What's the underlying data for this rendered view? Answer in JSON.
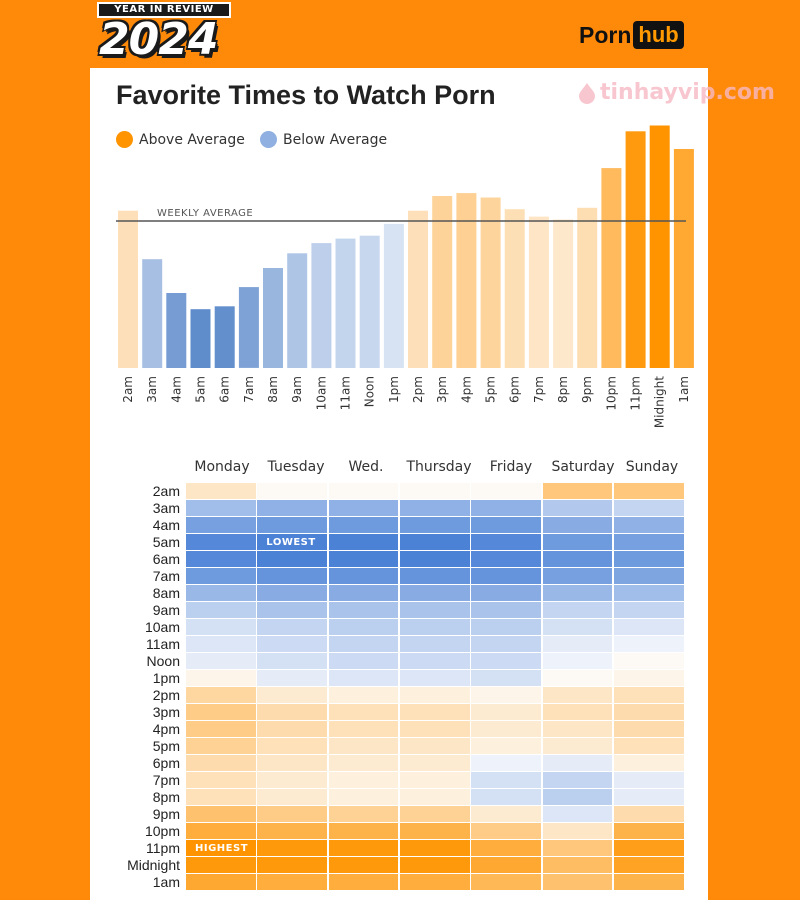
{
  "header": {
    "badge_top": "YEAR IN REVIEW",
    "badge_year": "2024",
    "brand_part1": "Porn",
    "brand_part2": "hub",
    "watermark": "tinhayvip.com"
  },
  "colors": {
    "background": "#ff8a0a",
    "above": "#ff9400",
    "below": "#8fb0e0"
  },
  "chart_data": [
    {
      "type": "bar",
      "title": "Favorite Times to Watch Porn",
      "legend": [
        "Above Average",
        "Below Average"
      ],
      "legend_position": "top-left",
      "reference_line": {
        "label": "WEEKLY AVERAGE",
        "value": 100
      },
      "categories": [
        "2am",
        "3am",
        "4am",
        "5am",
        "6am",
        "7am",
        "8am",
        "9am",
        "10am",
        "11am",
        "Noon",
        "1pm",
        "2pm",
        "3pm",
        "4pm",
        "5pm",
        "6pm",
        "7pm",
        "8pm",
        "9pm",
        "10pm",
        "11pm",
        "Midnight",
        "1am"
      ],
      "values": [
        107,
        74,
        51,
        40,
        42,
        55,
        68,
        78,
        85,
        88,
        90,
        98,
        107,
        117,
        119,
        116,
        108,
        103,
        101,
        109,
        136,
        161,
        165,
        149
      ],
      "ylim": [
        0,
        170
      ],
      "grid": false
    },
    {
      "type": "heatmap",
      "columns": [
        "Monday",
        "Tuesday",
        "Wed.",
        "Thursday",
        "Friday",
        "Saturday",
        "Sunday"
      ],
      "rows": [
        "2am",
        "3am",
        "4am",
        "5am",
        "6am",
        "7am",
        "8am",
        "9am",
        "10am",
        "11am",
        "Noon",
        "1pm",
        "2pm",
        "3pm",
        "4pm",
        "5pm",
        "6pm",
        "7pm",
        "8pm",
        "9pm",
        "10pm",
        "11pm",
        "Midnight",
        "1am"
      ],
      "values": [
        [
          0.2,
          0.0,
          0.0,
          0.0,
          0.0,
          0.5,
          0.5
        ],
        [
          -0.5,
          -0.6,
          -0.6,
          -0.6,
          -0.6,
          -0.4,
          -0.3
        ],
        [
          -0.75,
          -0.8,
          -0.8,
          -0.8,
          -0.8,
          -0.65,
          -0.6
        ],
        [
          -0.95,
          -1.0,
          -1.0,
          -1.0,
          -0.95,
          -0.8,
          -0.75
        ],
        [
          -0.95,
          -1.0,
          -1.0,
          -1.0,
          -0.95,
          -0.85,
          -0.8
        ],
        [
          -0.8,
          -0.85,
          -0.85,
          -0.85,
          -0.85,
          -0.75,
          -0.7
        ],
        [
          -0.55,
          -0.65,
          -0.65,
          -0.65,
          -0.65,
          -0.55,
          -0.5
        ],
        [
          -0.35,
          -0.45,
          -0.45,
          -0.45,
          -0.45,
          -0.3,
          -0.3
        ],
        [
          -0.2,
          -0.3,
          -0.35,
          -0.35,
          -0.35,
          -0.2,
          -0.15
        ],
        [
          -0.15,
          -0.25,
          -0.3,
          -0.3,
          -0.3,
          -0.1,
          -0.05
        ],
        [
          -0.1,
          -0.2,
          -0.25,
          -0.25,
          -0.25,
          -0.05,
          0.0
        ],
        [
          0.05,
          -0.1,
          -0.15,
          -0.15,
          -0.2,
          0.0,
          0.05
        ],
        [
          0.35,
          0.15,
          0.1,
          0.1,
          0.05,
          0.2,
          0.25
        ],
        [
          0.45,
          0.3,
          0.25,
          0.25,
          0.15,
          0.25,
          0.3
        ],
        [
          0.45,
          0.3,
          0.25,
          0.25,
          0.15,
          0.2,
          0.3
        ],
        [
          0.4,
          0.25,
          0.2,
          0.2,
          0.1,
          0.15,
          0.25
        ],
        [
          0.3,
          0.2,
          0.15,
          0.15,
          -0.05,
          -0.1,
          0.1
        ],
        [
          0.25,
          0.15,
          0.1,
          0.1,
          -0.2,
          -0.3,
          -0.1
        ],
        [
          0.25,
          0.15,
          0.1,
          0.1,
          -0.2,
          -0.35,
          -0.1
        ],
        [
          0.55,
          0.45,
          0.4,
          0.4,
          0.15,
          -0.15,
          0.3
        ],
        [
          0.75,
          0.7,
          0.7,
          0.7,
          0.45,
          0.2,
          0.7
        ],
        [
          1.0,
          0.95,
          0.95,
          0.95,
          0.75,
          0.5,
          0.9
        ],
        [
          0.95,
          0.95,
          0.95,
          0.95,
          0.8,
          0.6,
          0.85
        ],
        [
          0.8,
          0.75,
          0.75,
          0.75,
          0.65,
          0.55,
          0.7
        ]
      ],
      "annotations": [
        {
          "row": "5am",
          "column": "Tuesday",
          "text": "LOWEST"
        },
        {
          "row": "11pm",
          "column": "Monday",
          "text": "HIGHEST"
        }
      ]
    }
  ]
}
